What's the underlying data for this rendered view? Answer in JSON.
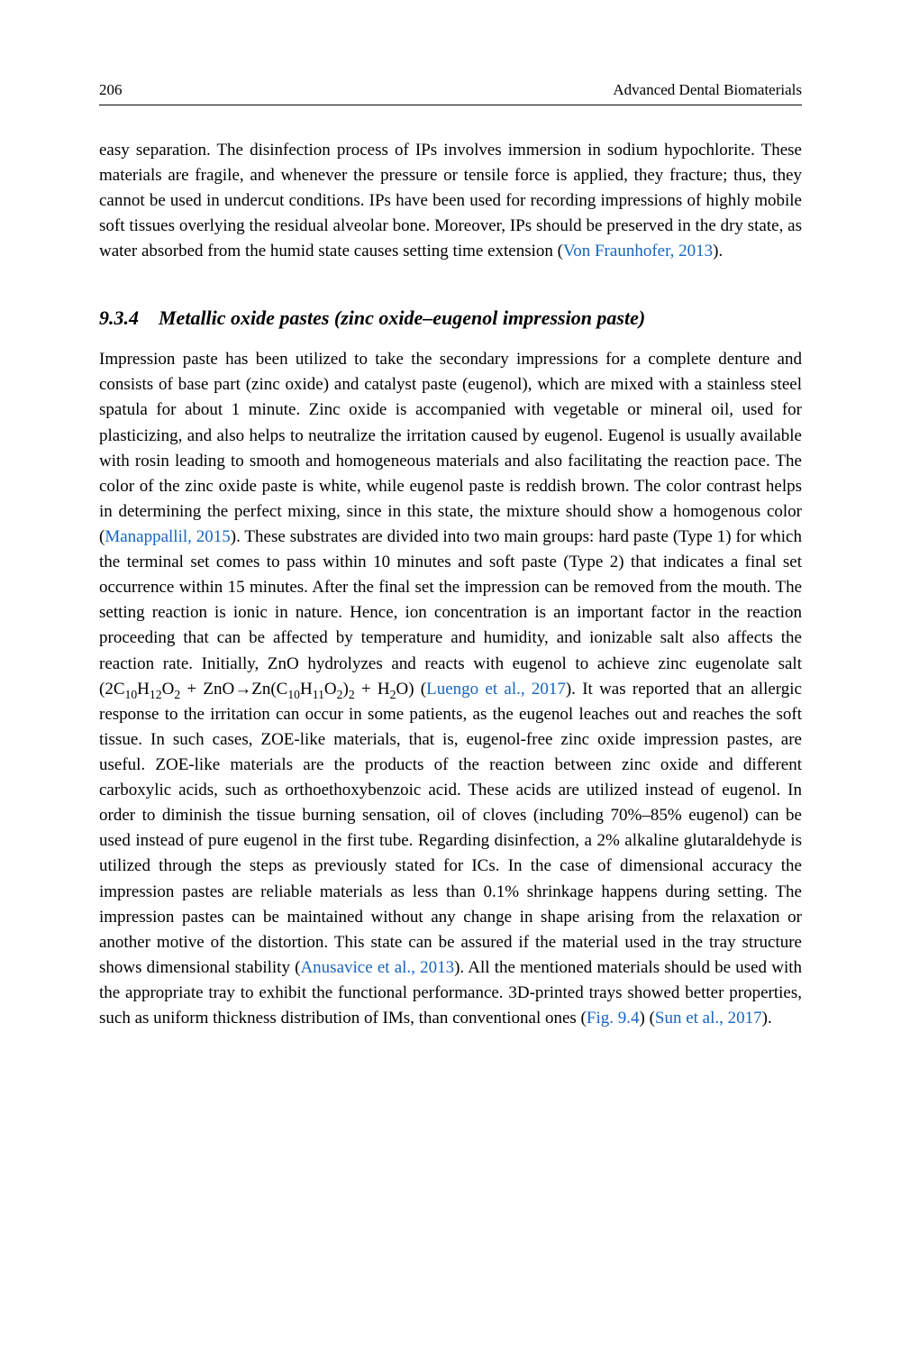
{
  "header": {
    "page_number": "206",
    "book_title": "Advanced Dental Biomaterials"
  },
  "colors": {
    "citation": "#1565c0",
    "text": "#000000",
    "background": "#ffffff"
  },
  "typography": {
    "body_fontsize_pt": 14,
    "heading_fontsize_pt": 16,
    "heading_style": "italic bold",
    "line_height": 1.48,
    "align": "justify",
    "font_family": "Times/Georgia serif"
  },
  "intro_para": {
    "text_1": "easy separation. The disinfection process of IPs involves immersion in sodium hypochlorite. These materials are fragile, and whenever the pressure or tensile force is applied, they fracture; thus, they cannot be used in undercut conditions. IPs have been used for recording impressions of highly mobile soft tissues overlying the residual alveolar bone. Moreover, IPs should be preserved in the dry state, as water absorbed from the humid state causes setting time extension (",
    "cite_1": "Von Fraunhofer, 2013",
    "text_2": ")."
  },
  "section": {
    "number": "9.3.4",
    "title": "Metallic oxide pastes (zinc oxide–eugenol impression paste)"
  },
  "body": {
    "t1": "Impression paste has been utilized to take the secondary impressions for a complete denture and consists of base part (zinc oxide) and catalyst paste (eugenol), which are mixed with a stainless steel spatula for about 1 minute. Zinc oxide is accompanied with vegetable or mineral oil, used for plasticizing, and also helps to neutralize the irritation caused by eugenol. Eugenol is usually available with rosin leading to smooth and homogeneous materials and also facilitating the reaction pace. The color of the zinc oxide paste is white, while eugenol paste is reddish brown. The color contrast helps in determining the perfect mixing, since in this state, the mixture should show a homogenous color (",
    "c1": "Manappallil, 2015",
    "t2": "). These substrates are divided into two main groups: hard paste (Type 1) for which the terminal set comes to pass within 10 minutes and soft paste (Type 2) that indicates a final set occurrence within 15 minutes. After the final set the impression can be removed from the mouth. The setting reaction is ionic in nature. Hence, ion concentration is an important factor in the reaction proceeding that can be affected by temperature and humidity, and ionizable salt also affects the reaction rate. Initially, ZnO hydrolyzes and reacts with eugenol to achieve zinc eugenolate salt ",
    "formula_a": "(2C",
    "formula_b": "H",
    "formula_c": "O",
    "formula_d": " + ZnO→Zn(C",
    "formula_e": "H",
    "formula_f": "O",
    "formula_g": ")",
    "formula_h": " + H",
    "formula_i": "O) (",
    "c2": "Luengo et al., 2017",
    "t3": "). It was reported that an allergic response to the irritation can occur in some patients, as the eugenol leaches out and reaches the soft tissue. In such cases, ZOE-like materials, that is, eugenol-free zinc oxide impression pastes, are useful. ZOE-like materials are the products of the reaction between zinc oxide and different carboxylic acids, such as orthoethoxybenzoic acid. These acids are utilized instead of eugenol. In order to diminish the tissue burning sensation, oil of cloves (including 70%–85% eugenol) can be used instead of pure eugenol in the first tube. Regarding disinfection, a 2% alkaline glutaraldehyde is utilized through the steps as previously stated for ICs. In the case of dimensional accuracy the impression pastes are reliable materials as less than 0.1% shrinkage happens during setting. The impression pastes can be maintained without any change in shape arising from the relaxation or another motive of the distortion. This state can be assured if the material used in the tray structure shows dimensional stability (",
    "c3": "Anusavice et al., 2013",
    "t4": "). All the mentioned materials should be used with the appropriate tray to exhibit the functional performance. 3D-printed trays showed better properties, such as uniform thickness distribution of IMs, than conventional ones (",
    "c4": "Fig. 9.4",
    "t5": ") (",
    "c5": "Sun et al., 2017",
    "t6": ")."
  },
  "sub": {
    "s10": "10",
    "s12": "12",
    "s2": "2",
    "s11": "11"
  }
}
